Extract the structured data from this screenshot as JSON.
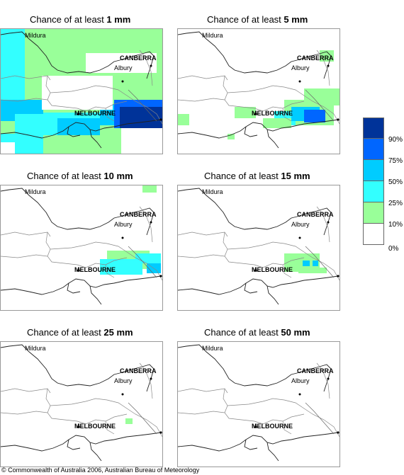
{
  "panels": [
    {
      "prefix": "Chance of at least ",
      "amount": "1 mm",
      "key": "p1"
    },
    {
      "prefix": "Chance of at least ",
      "amount": "5 mm",
      "key": "p5"
    },
    {
      "prefix": "Chance of at least ",
      "amount": "10 mm",
      "key": "p10"
    },
    {
      "prefix": "Chance of at least ",
      "amount": "15 mm",
      "key": "p15"
    },
    {
      "prefix": "Chance of at least ",
      "amount": "25 mm",
      "key": "p25"
    },
    {
      "prefix": "Chance of at least ",
      "amount": "50 mm",
      "key": "p50"
    }
  ],
  "places": {
    "mildura": "Mildura",
    "canberra": "CANBERRA",
    "albury": "Albury",
    "melbourne": "MELBOURNE"
  },
  "legend": {
    "labels": [
      "90%",
      "75%",
      "50%",
      "25%",
      "10%",
      "0%"
    ],
    "colors": [
      "#003399",
      "#0066ff",
      "#00ccff",
      "#33ffff",
      "#99ff99",
      "#ffffff"
    ]
  },
  "credit": "© Commonwealth of Australia 2006, Australian Bureau of Meteorology"
}
